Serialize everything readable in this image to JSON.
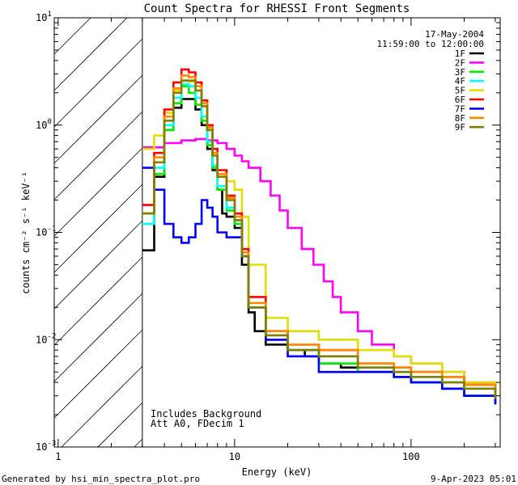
{
  "chart_data": {
    "type": "line",
    "title": "Count Spectra for RHESSI Front Segments",
    "xlabel": "Energy (keV)",
    "ylabel": "counts cm⁻² s⁻¹ keV⁻¹",
    "x_scale": "log",
    "y_scale": "log",
    "xlim": [
      0.95,
      320
    ],
    "ylim": [
      0.001,
      10
    ],
    "x_ticks": [
      {
        "value": 1,
        "label": "1"
      },
      {
        "value": 10,
        "label": "10"
      },
      {
        "value": 100,
        "label": "100"
      }
    ],
    "y_ticks": [
      {
        "value": 0.001,
        "base": "10",
        "exp": "-3"
      },
      {
        "value": 0.01,
        "base": "10",
        "exp": "-2"
      },
      {
        "value": 0.1,
        "base": "10",
        "exp": "-1"
      },
      {
        "value": 1,
        "base": "10",
        "exp": "0"
      },
      {
        "value": 10,
        "base": "10",
        "exp": "1"
      }
    ],
    "excluded_region": {
      "x_min": 0.95,
      "x_max": 3,
      "pattern": "hatched"
    },
    "date": "17-May-2004",
    "time_range": "11:59:00 to 12:00:00",
    "notes": [
      "Includes Background",
      "Att A0, FDecim 1"
    ],
    "series": [
      {
        "name": "1F",
        "color": "#000000",
        "points": [
          [
            3,
            0.068
          ],
          [
            3.5,
            0.33
          ],
          [
            4,
            0.9
          ],
          [
            4.5,
            1.45
          ],
          [
            5,
            1.75
          ],
          [
            5.5,
            1.75
          ],
          [
            6,
            1.4
          ],
          [
            6.5,
            1.0
          ],
          [
            7,
            0.6
          ],
          [
            7.5,
            0.38
          ],
          [
            8,
            0.25
          ],
          [
            8.5,
            0.15
          ],
          [
            9,
            0.14
          ],
          [
            10,
            0.11
          ],
          [
            11,
            0.05
          ],
          [
            12,
            0.018
          ],
          [
            13,
            0.012
          ],
          [
            15,
            0.009
          ],
          [
            20,
            0.008
          ],
          [
            25,
            0.007
          ],
          [
            30,
            0.006
          ],
          [
            40,
            0.0055
          ],
          [
            50,
            0.005
          ],
          [
            60,
            0.005
          ],
          [
            80,
            0.0045
          ],
          [
            100,
            0.004
          ],
          [
            150,
            0.0035
          ],
          [
            200,
            0.003
          ],
          [
            300,
            0.0025
          ]
        ]
      },
      {
        "name": "2F",
        "color": "#ff00ff",
        "points": [
          [
            3,
            0.62
          ],
          [
            4,
            0.68
          ],
          [
            5,
            0.72
          ],
          [
            6,
            0.74
          ],
          [
            7,
            0.72
          ],
          [
            8,
            0.68
          ],
          [
            9,
            0.6
          ],
          [
            10,
            0.52
          ],
          [
            11,
            0.46
          ],
          [
            12,
            0.4
          ],
          [
            14,
            0.3
          ],
          [
            16,
            0.22
          ],
          [
            18,
            0.16
          ],
          [
            20,
            0.11
          ],
          [
            24,
            0.07
          ],
          [
            28,
            0.05
          ],
          [
            32,
            0.035
          ],
          [
            36,
            0.025
          ],
          [
            40,
            0.018
          ],
          [
            50,
            0.012
          ],
          [
            60,
            0.009
          ],
          [
            80,
            0.007
          ],
          [
            100,
            0.006
          ],
          [
            150,
            0.005
          ],
          [
            200,
            0.004
          ],
          [
            300,
            0.0028
          ]
        ]
      },
      {
        "name": "3F",
        "color": "#00ee00",
        "points": [
          [
            3,
            0.12
          ],
          [
            3.5,
            0.35
          ],
          [
            4,
            0.9
          ],
          [
            4.5,
            1.6
          ],
          [
            5,
            2.3
          ],
          [
            5.5,
            2.0
          ],
          [
            6,
            1.55
          ],
          [
            6.5,
            1.1
          ],
          [
            7,
            0.65
          ],
          [
            7.5,
            0.4
          ],
          [
            8,
            0.25
          ],
          [
            9,
            0.16
          ],
          [
            10,
            0.12
          ],
          [
            11,
            0.06
          ],
          [
            12,
            0.02
          ],
          [
            15,
            0.01
          ],
          [
            20,
            0.008
          ],
          [
            30,
            0.006
          ],
          [
            50,
            0.005
          ],
          [
            80,
            0.0045
          ],
          [
            100,
            0.004
          ],
          [
            150,
            0.0035
          ],
          [
            200,
            0.003
          ],
          [
            300,
            0.0025
          ]
        ]
      },
      {
        "name": "4F",
        "color": "#00ffff",
        "points": [
          [
            3,
            0.12
          ],
          [
            3.5,
            0.4
          ],
          [
            4,
            1.0
          ],
          [
            4.5,
            1.8
          ],
          [
            5,
            2.4
          ],
          [
            5.5,
            2.3
          ],
          [
            6,
            1.8
          ],
          [
            6.5,
            1.2
          ],
          [
            7,
            0.7
          ],
          [
            7.5,
            0.42
          ],
          [
            8,
            0.27
          ],
          [
            9,
            0.17
          ],
          [
            10,
            0.13
          ],
          [
            11,
            0.06
          ],
          [
            12,
            0.02
          ],
          [
            15,
            0.011
          ],
          [
            20,
            0.008
          ],
          [
            30,
            0.007
          ],
          [
            50,
            0.0055
          ],
          [
            80,
            0.005
          ],
          [
            100,
            0.0045
          ],
          [
            150,
            0.004
          ],
          [
            200,
            0.0035
          ],
          [
            300,
            0.0028
          ]
        ]
      },
      {
        "name": "5F",
        "color": "#e0e000",
        "points": [
          [
            3,
            0.6
          ],
          [
            3.5,
            0.8
          ],
          [
            4,
            1.3
          ],
          [
            4.5,
            2.1
          ],
          [
            5,
            2.6
          ],
          [
            5.5,
            2.55
          ],
          [
            6,
            2.1
          ],
          [
            6.5,
            1.5
          ],
          [
            7,
            0.9
          ],
          [
            7.5,
            0.55
          ],
          [
            8,
            0.38
          ],
          [
            9,
            0.3
          ],
          [
            10,
            0.25
          ],
          [
            11,
            0.14
          ],
          [
            12,
            0.05
          ],
          [
            15,
            0.016
          ],
          [
            20,
            0.012
          ],
          [
            30,
            0.01
          ],
          [
            50,
            0.008
          ],
          [
            80,
            0.007
          ],
          [
            100,
            0.006
          ],
          [
            150,
            0.005
          ],
          [
            200,
            0.004
          ],
          [
            300,
            0.003
          ]
        ]
      },
      {
        "name": "6F",
        "color": "#ff0000",
        "points": [
          [
            3,
            0.18
          ],
          [
            3.5,
            0.55
          ],
          [
            4,
            1.4
          ],
          [
            4.5,
            2.5
          ],
          [
            5,
            3.3
          ],
          [
            5.5,
            3.1
          ],
          [
            6,
            2.5
          ],
          [
            6.5,
            1.7
          ],
          [
            7,
            1.0
          ],
          [
            7.5,
            0.6
          ],
          [
            8,
            0.38
          ],
          [
            9,
            0.22
          ],
          [
            10,
            0.15
          ],
          [
            11,
            0.07
          ],
          [
            12,
            0.025
          ],
          [
            15,
            0.012
          ],
          [
            20,
            0.009
          ],
          [
            30,
            0.008
          ],
          [
            50,
            0.006
          ],
          [
            80,
            0.0055
          ],
          [
            100,
            0.005
          ],
          [
            150,
            0.0045
          ],
          [
            200,
            0.0038
          ],
          [
            300,
            0.003
          ]
        ]
      },
      {
        "name": "7F",
        "color": "#0000ff",
        "points": [
          [
            3,
            0.4
          ],
          [
            3.5,
            0.25
          ],
          [
            4,
            0.12
          ],
          [
            4.5,
            0.09
          ],
          [
            5,
            0.08
          ],
          [
            5.5,
            0.09
          ],
          [
            6,
            0.12
          ],
          [
            6.5,
            0.2
          ],
          [
            7,
            0.17
          ],
          [
            7.5,
            0.14
          ],
          [
            8,
            0.1
          ],
          [
            9,
            0.09
          ],
          [
            10,
            0.09
          ],
          [
            11,
            0.06
          ],
          [
            12,
            0.02
          ],
          [
            15,
            0.01
          ],
          [
            20,
            0.007
          ],
          [
            30,
            0.005
          ],
          [
            50,
            0.005
          ],
          [
            80,
            0.0045
          ],
          [
            100,
            0.004
          ],
          [
            150,
            0.0035
          ],
          [
            200,
            0.003
          ],
          [
            300,
            0.0025
          ]
        ]
      },
      {
        "name": "8F",
        "color": "#ff8800",
        "points": [
          [
            3,
            0.15
          ],
          [
            3.5,
            0.5
          ],
          [
            4,
            1.2
          ],
          [
            4.5,
            2.2
          ],
          [
            5,
            2.9
          ],
          [
            5.5,
            2.8
          ],
          [
            6,
            2.3
          ],
          [
            6.5,
            1.6
          ],
          [
            7,
            0.95
          ],
          [
            7.5,
            0.55
          ],
          [
            8,
            0.35
          ],
          [
            9,
            0.21
          ],
          [
            10,
            0.14
          ],
          [
            11,
            0.065
          ],
          [
            12,
            0.022
          ],
          [
            15,
            0.012
          ],
          [
            20,
            0.009
          ],
          [
            30,
            0.008
          ],
          [
            50,
            0.006
          ],
          [
            80,
            0.0055
          ],
          [
            100,
            0.005
          ],
          [
            150,
            0.0045
          ],
          [
            200,
            0.0038
          ],
          [
            300,
            0.003
          ]
        ]
      },
      {
        "name": "9F",
        "color": "#808000",
        "points": [
          [
            3,
            0.15
          ],
          [
            3.5,
            0.45
          ],
          [
            4,
            1.1
          ],
          [
            4.5,
            2.0
          ],
          [
            5,
            2.6
          ],
          [
            5.5,
            2.6
          ],
          [
            6,
            2.1
          ],
          [
            6.5,
            1.5
          ],
          [
            7,
            0.9
          ],
          [
            7.5,
            0.52
          ],
          [
            8,
            0.33
          ],
          [
            9,
            0.2
          ],
          [
            10,
            0.13
          ],
          [
            11,
            0.06
          ],
          [
            12,
            0.02
          ],
          [
            15,
            0.011
          ],
          [
            20,
            0.008
          ],
          [
            30,
            0.007
          ],
          [
            50,
            0.0055
          ],
          [
            80,
            0.005
          ],
          [
            100,
            0.0045
          ],
          [
            150,
            0.004
          ],
          [
            200,
            0.0035
          ],
          [
            300,
            0.0028
          ]
        ]
      }
    ]
  },
  "footer": {
    "generated_by": "Generated by hsi_min_spectra_plot.pro",
    "timestamp": "9-Apr-2023 05:01"
  }
}
